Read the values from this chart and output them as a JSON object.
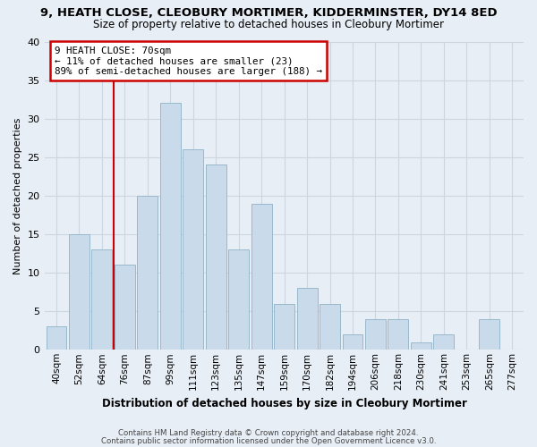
{
  "title": "9, HEATH CLOSE, CLEOBURY MORTIMER, KIDDERMINSTER, DY14 8ED",
  "subtitle": "Size of property relative to detached houses in Cleobury Mortimer",
  "xlabel": "Distribution of detached houses by size in Cleobury Mortimer",
  "ylabel": "Number of detached properties",
  "bar_labels": [
    "40sqm",
    "52sqm",
    "64sqm",
    "76sqm",
    "87sqm",
    "99sqm",
    "111sqm",
    "123sqm",
    "135sqm",
    "147sqm",
    "159sqm",
    "170sqm",
    "182sqm",
    "194sqm",
    "206sqm",
    "218sqm",
    "230sqm",
    "241sqm",
    "253sqm",
    "265sqm",
    "277sqm"
  ],
  "bar_values": [
    3,
    15,
    13,
    11,
    20,
    32,
    26,
    24,
    13,
    19,
    6,
    8,
    6,
    2,
    4,
    4,
    1,
    2,
    0,
    4,
    0
  ],
  "bar_color": "#c9daea",
  "bar_edge_color": "#9ab8cc",
  "grid_color": "#ccd6e0",
  "vline_x_index": 3,
  "annotation_line1": "9 HEATH CLOSE: 70sqm",
  "annotation_line2": "← 11% of detached houses are smaller (23)",
  "annotation_line3": "89% of semi-detached houses are larger (188) →",
  "annotation_box_color": "#ffffff",
  "annotation_box_edge": "#cc0000",
  "vline_color": "#cc0000",
  "footnote1": "Contains HM Land Registry data © Crown copyright and database right 2024.",
  "footnote2": "Contains public sector information licensed under the Open Government Licence v3.0.",
  "ylim": [
    0,
    40
  ],
  "yticks": [
    0,
    5,
    10,
    15,
    20,
    25,
    30,
    35,
    40
  ],
  "background_color": "#e8eef5"
}
